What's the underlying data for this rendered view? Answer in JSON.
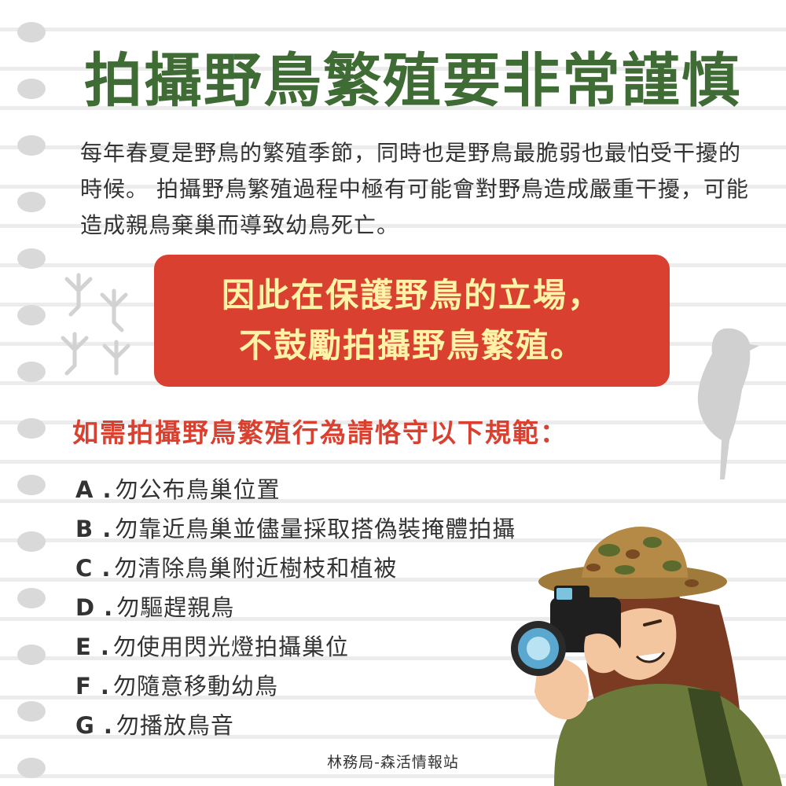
{
  "title": "拍攝野鳥繁殖要非常謹慎",
  "intro": "每年春夏是野鳥的繁殖季節，同時也是野鳥最脆弱也最怕受干擾的時候。 拍攝野鳥繁殖過程中極有可能會對野鳥造成嚴重干擾，可能造成親鳥棄巢而導致幼鳥死亡。",
  "banner": {
    "line1": "因此在保護野鳥的立場，",
    "line2": "不鼓勵拍攝野鳥繁殖。"
  },
  "subhead": "如需拍攝野鳥繁殖行為請恪守以下規範：",
  "rules": [
    {
      "letter": "A .",
      "text": "勿公布鳥巢位置"
    },
    {
      "letter": "B .",
      "text": "勿靠近鳥巢並儘量採取搭偽裝掩體拍攝"
    },
    {
      "letter": "C .",
      "text": "勿清除鳥巢附近樹枝和植被"
    },
    {
      "letter": "D .",
      "text": "勿驅趕親鳥"
    },
    {
      "letter": "E .",
      "text": "勿使用閃光燈拍攝巢位"
    },
    {
      "letter": "F .",
      "text": "勿隨意移動幼鳥"
    },
    {
      "letter": "G .",
      "text": "勿播放鳥音"
    }
  ],
  "footer": "林務局-森活情報站",
  "colors": {
    "title_green": "#3f6b34",
    "banner_red": "#d9402f",
    "banner_text": "#fff3a8",
    "subhead_red": "#d9402f"
  },
  "icons": [
    "bird-footprints-icon",
    "bird-silhouette-icon",
    "photographer-illustration"
  ]
}
